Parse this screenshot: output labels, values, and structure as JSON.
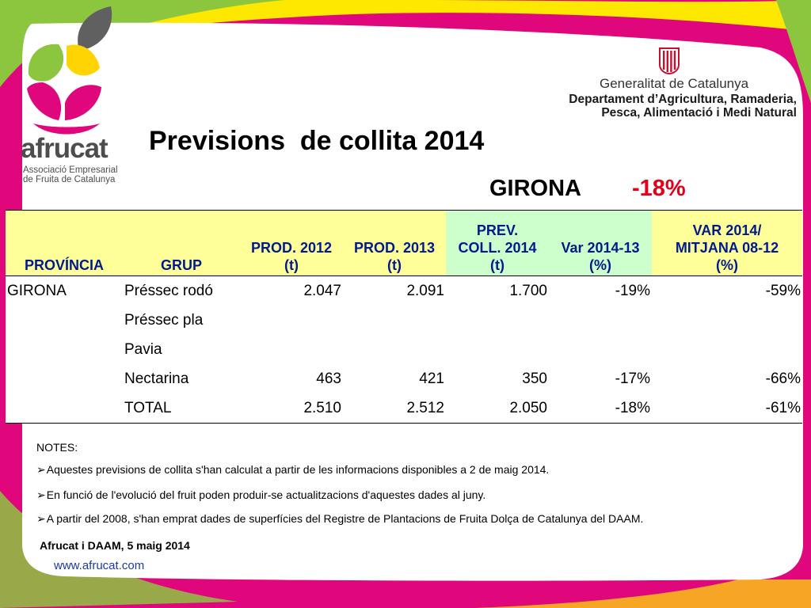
{
  "colors": {
    "magenta": "#e0077d",
    "yellow": "#ffe800",
    "green": "#8cc63f",
    "header_yellow": "#ffff99",
    "header_green": "#ccffcc",
    "header_text": "#001a8c",
    "highlight_red": "#e3001b"
  },
  "logo": {
    "name": "afrucat",
    "subtitle_line1": "Associació Empresarial",
    "subtitle_line2": "de Fruita de Catalunya"
  },
  "government": {
    "name": "Generalitat de Catalunya",
    "department_line1": "Departament d’Agricultura, Ramaderia,",
    "department_line2": "Pesca, Alimentació i Medi Natural"
  },
  "title": "Previsions  de collita 2014",
  "region": {
    "name": "GIRONA",
    "change": "-18%"
  },
  "table": {
    "headers": [
      {
        "line1": "",
        "line2": "",
        "line3": "PROVÍNCIA"
      },
      {
        "line1": "",
        "line2": "",
        "line3": "GRUP"
      },
      {
        "line1": "",
        "line2": "PROD. 2012",
        "line3": "(t)"
      },
      {
        "line1": "",
        "line2": "PROD. 2013",
        "line3": "(t)"
      },
      {
        "line1": "PREV.",
        "line2": "COLL. 2014",
        "line3": "(t)"
      },
      {
        "line1": "",
        "line2": "Var 2014-13",
        "line3": "(%)"
      },
      {
        "line1": "VAR 2014/",
        "line2": "MITJANA 08-12",
        "line3": "(%)"
      }
    ],
    "rows": [
      [
        "GIRONA",
        "Préssec rodó",
        "2.047",
        "2.091",
        "1.700",
        "-19%",
        "-59%"
      ],
      [
        "",
        "Préssec pla",
        "",
        "",
        "",
        "",
        ""
      ],
      [
        "",
        "Pavia",
        "",
        "",
        "",
        "",
        ""
      ],
      [
        "",
        "Nectarina",
        "463",
        "421",
        "350",
        "-17%",
        "-66%"
      ],
      [
        "",
        "TOTAL",
        "2.510",
        "2.512",
        "2.050",
        "-18%",
        "-61%"
      ]
    ]
  },
  "notes": {
    "title": "NOTES:",
    "bullet": "➢",
    "items": [
      "Aquestes previsions  de collita s'han calculat a partir de les informacions disponibles a 2 de maig 2014.",
      "En funció de l'evolució del fruit poden produir-se actualitzacions d'aquestes dades al juny.",
      "A partir del 2008, s'han emprat dades de superfícies del Registre de Plantacions de Fruita Dolça de Catalunya del DAAM."
    ]
  },
  "footer": {
    "date": "Afrucat i DAAM, 5 maig 2014",
    "website": "www.afrucat.com"
  }
}
